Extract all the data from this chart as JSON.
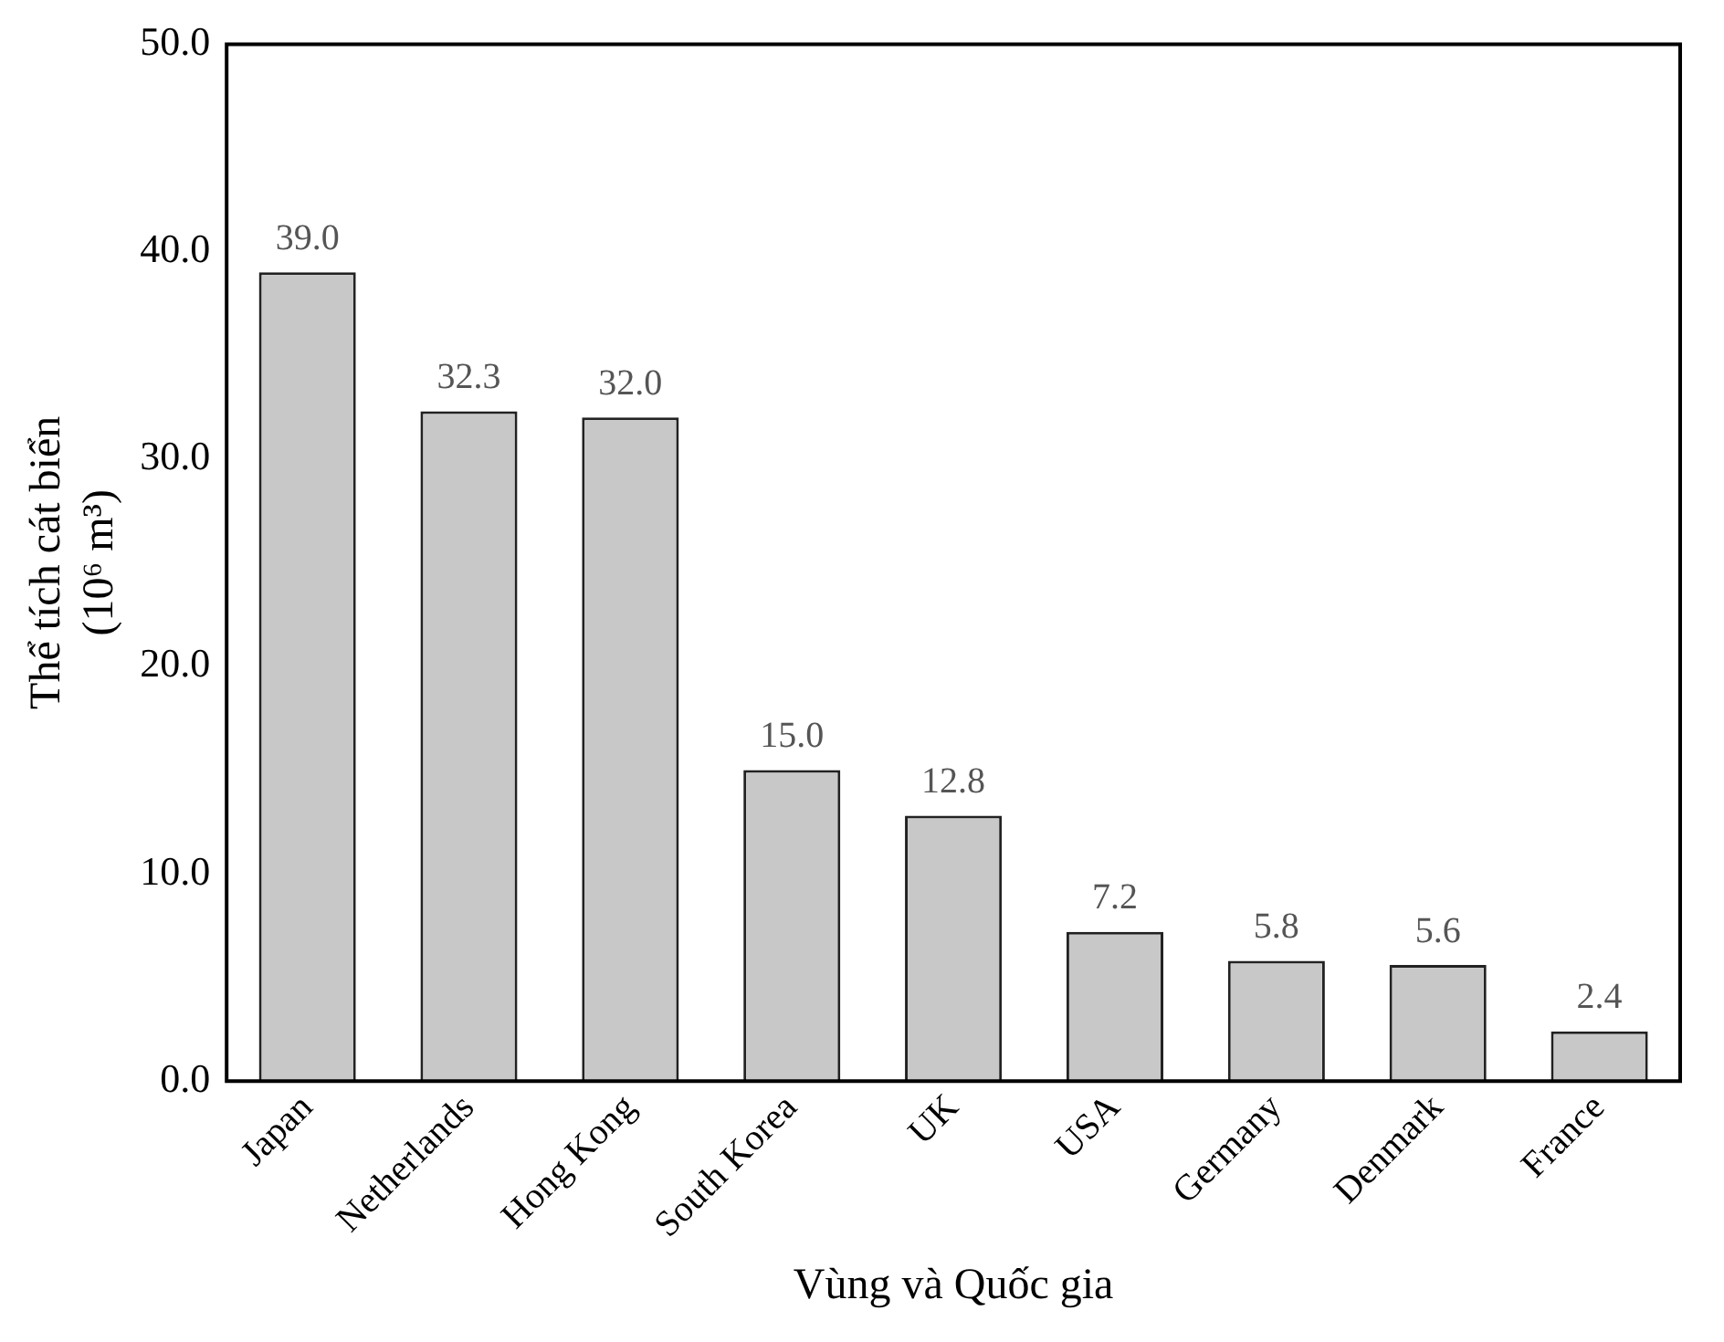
{
  "chart_data": {
    "type": "bar",
    "xlabel": "Vùng và Quốc gia",
    "ylabel": "Thể tích cát biển\n(10⁶ m³)",
    "categories": [
      "Japan",
      "Netherlands",
      "Hong Kong",
      "South Korea",
      "UK",
      "USA",
      "Germany",
      "Denmark",
      "France"
    ],
    "values": [
      39.0,
      32.3,
      32.0,
      15.0,
      12.8,
      7.2,
      5.8,
      5.6,
      2.4
    ],
    "color": "#c8c8c8",
    "ylim": [
      0,
      50
    ],
    "yticks": [
      {
        "value": 0,
        "label": "0.0"
      },
      {
        "value": 10,
        "label": "10.0"
      },
      {
        "value": 20,
        "label": "20.0"
      },
      {
        "value": 30,
        "label": "30.0"
      },
      {
        "value": 40,
        "label": "40.0"
      },
      {
        "value": 50,
        "label": "50.0"
      }
    ],
    "value_labels": [
      "39.0",
      "32.3",
      "32.0",
      "15.0",
      "12.8",
      "7.2",
      "5.8",
      "5.6",
      "2.4"
    ],
    "grid": false,
    "legend": false
  }
}
